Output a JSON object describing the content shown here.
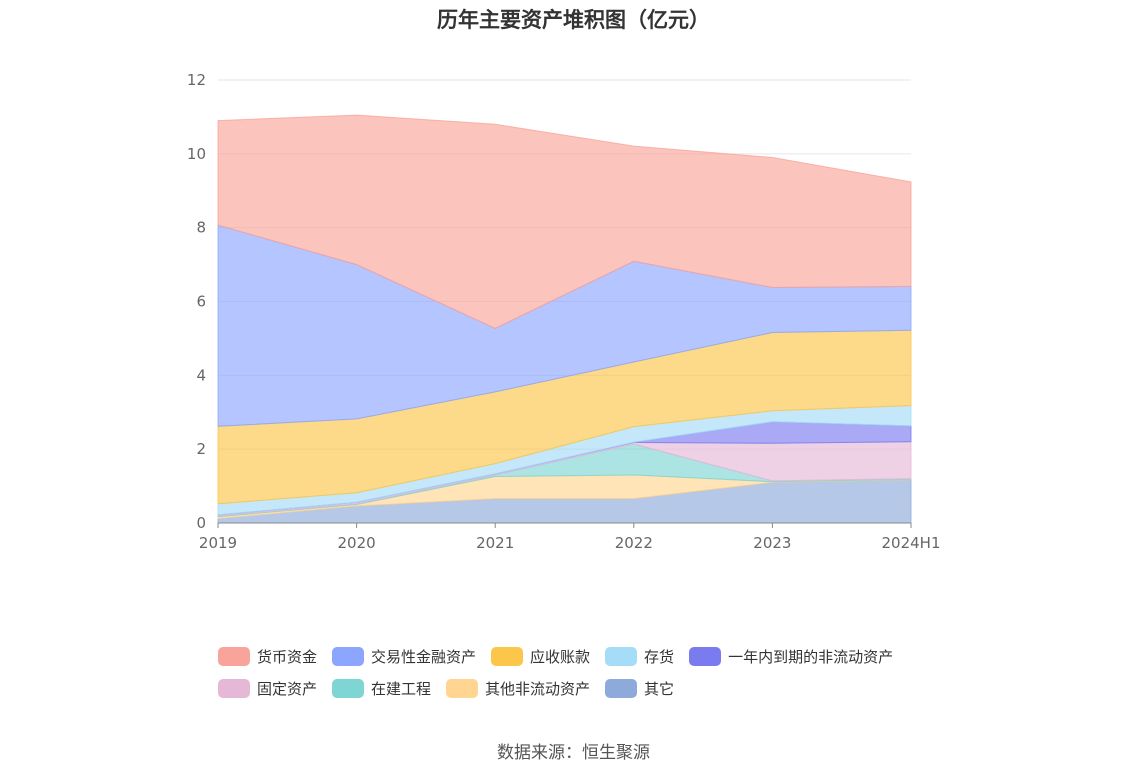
{
  "chart_data": {
    "type": "area",
    "stacked": true,
    "title": "历年主要资产堆积图（亿元）",
    "categories": [
      "2019",
      "2020",
      "2021",
      "2022",
      "2023",
      "2024H1"
    ],
    "ylim": [
      0,
      12
    ],
    "yticks": [
      0,
      2,
      4,
      6,
      8,
      10,
      12
    ],
    "grid": true,
    "legend_position": "bottom",
    "series": [
      {
        "name": "其它",
        "color": "#8eaadb",
        "values": [
          0.12,
          0.46,
          0.66,
          0.66,
          1.1,
          1.17
        ]
      },
      {
        "name": "其他非流动资产",
        "color": "#ffd591",
        "values": [
          0.05,
          0.04,
          0.6,
          0.64,
          0.02,
          0.01
        ]
      },
      {
        "name": "在建工程",
        "color": "#7fd4d4",
        "values": [
          0.02,
          0.02,
          0.04,
          0.84,
          0.02,
          0.02
        ]
      },
      {
        "name": "固定资产",
        "color": "#e6b8d8",
        "values": [
          0.03,
          0.04,
          0.03,
          0.04,
          1.02,
          1.0
        ]
      },
      {
        "name": "一年内到期的非流动资产",
        "color": "#7b7bf0",
        "values": [
          0.0,
          0.0,
          0.0,
          0.01,
          0.58,
          0.43
        ]
      },
      {
        "name": "存货",
        "color": "#a5dcf8",
        "values": [
          0.3,
          0.26,
          0.28,
          0.42,
          0.3,
          0.55
        ]
      },
      {
        "name": "应收账款",
        "color": "#fbc64a",
        "values": [
          2.1,
          2.0,
          1.94,
          1.75,
          2.12,
          2.04
        ]
      },
      {
        "name": "交易性金融资产",
        "color": "#8ca6ff",
        "values": [
          5.45,
          4.18,
          1.72,
          2.73,
          1.22,
          1.19
        ]
      },
      {
        "name": "货币资金",
        "color": "#f9a49a",
        "values": [
          2.83,
          4.05,
          5.53,
          3.12,
          3.52,
          2.83
        ]
      }
    ]
  },
  "legend_order": [
    [
      "货币资金",
      "交易性金融资产",
      "应收账款",
      "存货",
      "一年内到期的非流动资产"
    ],
    [
      "固定资产",
      "在建工程",
      "其他非流动资产",
      "其它"
    ]
  ],
  "source": "数据来源：恒生聚源"
}
